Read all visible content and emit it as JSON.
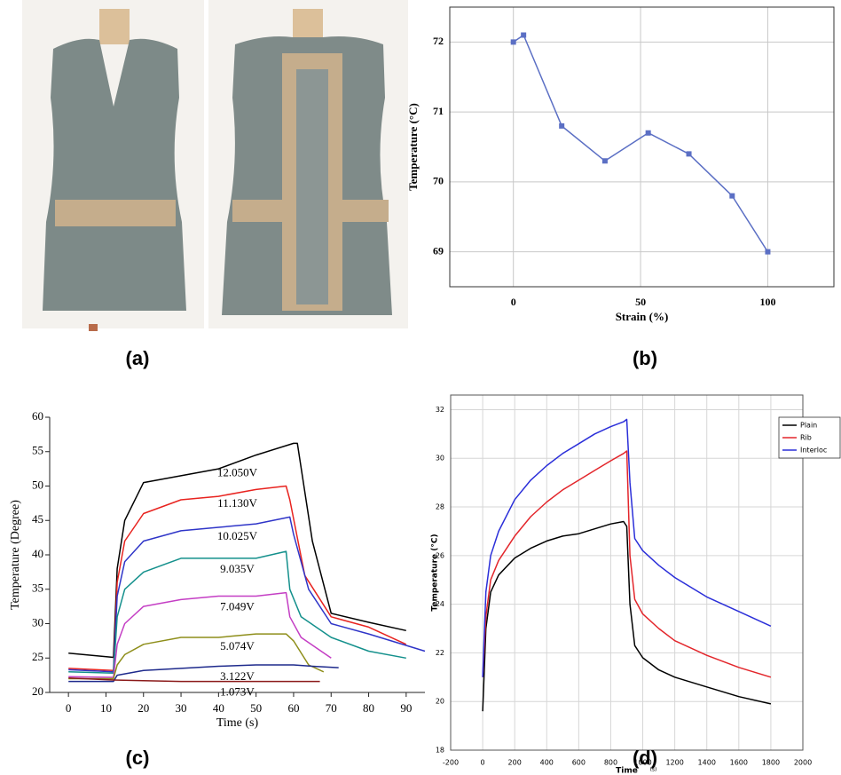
{
  "photo": {
    "label": "(a)"
  },
  "chart_data": [
    {
      "type": "line",
      "label": "(b)",
      "x_label": "Strain (%)",
      "y_label": "Temperature (°C)",
      "x": [
        0,
        4,
        19,
        36,
        53,
        69,
        86,
        100
      ],
      "values": [
        72,
        72.1,
        70.8,
        70.3,
        70.7,
        70.4,
        69.8,
        69
      ],
      "color": "#5b6fc4",
      "markers": true,
      "xlim": [
        -25,
        126
      ],
      "ylim": [
        68.5,
        72.5
      ],
      "xticks": [
        0,
        50,
        100
      ],
      "yticks": [
        69,
        70,
        71,
        72
      ],
      "grid": true,
      "box": true
    },
    {
      "type": "line",
      "label": "(c)",
      "x_label": "Time (s)",
      "y_label": "Temperature (Degree)",
      "xlim": [
        -5,
        95
      ],
      "ylim": [
        20,
        60
      ],
      "xticks": [
        0,
        10,
        20,
        30,
        40,
        50,
        60,
        70,
        80,
        90
      ],
      "yticks": [
        20,
        25,
        30,
        35,
        40,
        45,
        50,
        55,
        60
      ],
      "grid": false,
      "box": false,
      "inline_labels": true,
      "series": [
        {
          "name": "12.050V",
          "color": "#000000",
          "x": [
            0,
            12,
            13,
            15,
            20,
            30,
            40,
            50,
            60,
            61,
            65,
            70,
            80,
            90
          ],
          "values": [
            25.7,
            25.1,
            38,
            45,
            50.5,
            51.5,
            52.5,
            54.5,
            56.2,
            56.2,
            42,
            31.5,
            30.2,
            29
          ]
        },
        {
          "name": "11.130V",
          "color": "#e8231f",
          "x": [
            0,
            12,
            13,
            15,
            20,
            30,
            40,
            50,
            58,
            59,
            63,
            70,
            80,
            90
          ],
          "values": [
            23.5,
            23.2,
            36,
            42,
            46,
            48,
            48.5,
            49.5,
            50,
            48,
            37,
            31,
            29.5,
            27
          ]
        },
        {
          "name": "10.025V",
          "color": "#2f35c8",
          "x": [
            0,
            12,
            13,
            15,
            20,
            30,
            40,
            50,
            59,
            60,
            64,
            70,
            80,
            95
          ],
          "values": [
            23.3,
            23,
            34,
            39,
            42,
            43.5,
            44,
            44.5,
            45.5,
            43,
            35,
            30,
            28.5,
            26
          ]
        },
        {
          "name": "9.035V",
          "color": "#14908c",
          "x": [
            0,
            12,
            13,
            15,
            20,
            30,
            40,
            50,
            58,
            59,
            62,
            70,
            80,
            90
          ],
          "values": [
            23,
            22.8,
            31,
            35,
            37.5,
            39.5,
            39.5,
            39.5,
            40.5,
            35,
            31,
            28,
            26,
            25
          ]
        },
        {
          "name": "7.049V",
          "color": "#c43ec4",
          "x": [
            0,
            12,
            13,
            15,
            20,
            30,
            40,
            50,
            58,
            59,
            62,
            66,
            70
          ],
          "values": [
            22.3,
            22.2,
            27,
            30,
            32.5,
            33.5,
            34,
            34,
            34.5,
            31,
            28,
            26.5,
            25
          ]
        },
        {
          "name": "5.074V",
          "color": "#8e8e1a",
          "x": [
            0,
            12,
            13,
            15,
            20,
            30,
            40,
            50,
            58,
            60,
            64,
            68
          ],
          "values": [
            22,
            22,
            24,
            25.5,
            27,
            28,
            28,
            28.5,
            28.5,
            27.5,
            24,
            23
          ]
        },
        {
          "name": "3.122V",
          "color": "#1e2a8c",
          "x": [
            0,
            12,
            13,
            20,
            30,
            40,
            50,
            60,
            65,
            72
          ],
          "values": [
            21.6,
            21.6,
            22.5,
            23.2,
            23.5,
            23.8,
            24,
            24,
            23.8,
            23.6
          ]
        },
        {
          "name": "1.073V",
          "color": "#8b1a1a",
          "x": [
            0,
            12,
            20,
            30,
            40,
            50,
            60,
            67
          ],
          "values": [
            22.1,
            21.8,
            21.7,
            21.6,
            21.6,
            21.6,
            21.6,
            21.6
          ]
        }
      ]
    },
    {
      "type": "line",
      "label": "(d)",
      "x_label": "Time",
      "x_unit": "(s)",
      "y_label": "Temperature (°C)",
      "xlim": [
        -200,
        2000
      ],
      "ylim": [
        18,
        32.6
      ],
      "xticks": [
        -200,
        0,
        200,
        400,
        600,
        800,
        1000,
        1200,
        1400,
        1600,
        1800,
        2000
      ],
      "yticks": [
        18,
        20,
        22,
        24,
        26,
        28,
        30,
        32
      ],
      "grid": true,
      "box": true,
      "legend": "top-right",
      "x": [
        0,
        20,
        50,
        100,
        200,
        300,
        400,
        500,
        600,
        700,
        800,
        880,
        900,
        920,
        950,
        1000,
        1100,
        1200,
        1400,
        1600,
        1800
      ],
      "series": [
        {
          "name": "Plain",
          "color": "#000000",
          "values": [
            19.6,
            23,
            24.5,
            25.2,
            25.9,
            26.3,
            26.6,
            26.8,
            26.9,
            27.1,
            27.3,
            27.4,
            27.2,
            24,
            22.3,
            21.8,
            21.3,
            21,
            20.6,
            20.2,
            19.9
          ]
        },
        {
          "name": "Rib",
          "color": "#e3262b",
          "values": [
            21,
            23.5,
            25,
            25.8,
            26.8,
            27.6,
            28.2,
            28.7,
            29.1,
            29.5,
            29.9,
            30.2,
            30.3,
            26,
            24.2,
            23.6,
            23,
            22.5,
            21.9,
            21.4,
            21
          ]
        },
        {
          "name": "Interloc",
          "color": "#2b2fd9",
          "values": [
            21,
            24.5,
            26,
            27,
            28.3,
            29.1,
            29.7,
            30.2,
            30.6,
            31,
            31.3,
            31.5,
            31.6,
            29,
            26.7,
            26.2,
            25.6,
            25.1,
            24.3,
            23.7,
            23.1
          ]
        }
      ]
    }
  ]
}
